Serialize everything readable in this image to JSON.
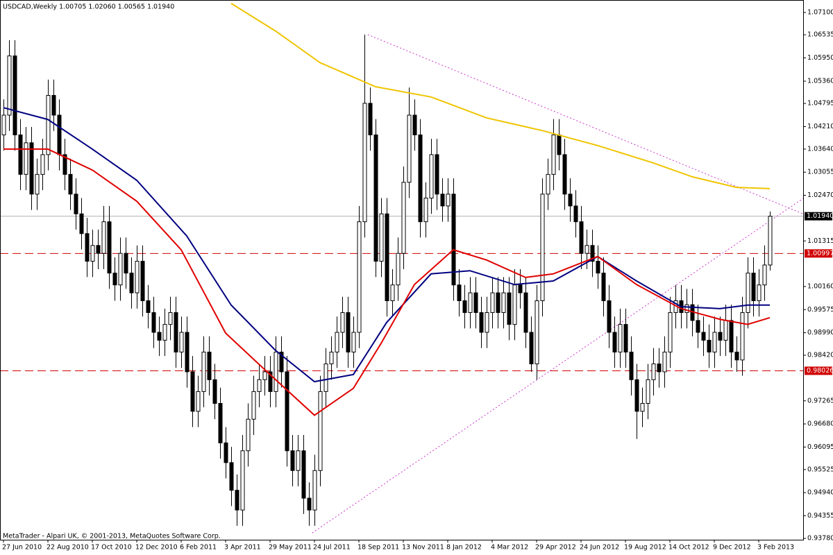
{
  "chart_data": {
    "type": "candlestick",
    "title": "USDCAD,Weekly  1.00705 1.02060 1.00565 1.01940",
    "annotation": "MetaTrader - Alpari UK, © 2001-2013, MetaQuotes Software Corp.",
    "up_color": "#ffffff",
    "down_color": "#000000",
    "candles": [
      [
        1.04,
        1.049,
        1.036,
        1.045
      ],
      [
        1.045,
        1.064,
        1.041,
        1.06
      ],
      [
        1.06,
        1.064,
        1.036,
        1.04
      ],
      [
        1.04,
        1.044,
        1.026,
        1.03
      ],
      [
        1.03,
        1.042,
        1.026,
        1.038
      ],
      [
        1.038,
        1.042,
        1.021,
        1.025
      ],
      [
        1.025,
        1.034,
        1.021,
        1.03
      ],
      [
        1.03,
        1.039,
        1.026,
        1.035
      ],
      [
        1.035,
        1.054,
        1.031,
        1.05
      ],
      [
        1.05,
        1.054,
        1.041,
        1.045
      ],
      [
        1.045,
        1.049,
        1.031,
        1.035
      ],
      [
        1.035,
        1.039,
        1.026,
        1.03
      ],
      [
        1.03,
        1.034,
        1.021,
        1.025
      ],
      [
        1.025,
        1.029,
        1.016,
        1.02
      ],
      [
        1.02,
        1.024,
        1.011,
        1.015
      ],
      [
        1.015,
        1.019,
        1.004,
        1.008
      ],
      [
        1.008,
        1.016,
        1.004,
        1.012
      ],
      [
        1.012,
        1.016,
        1.006,
        1.01
      ],
      [
        1.01,
        1.022,
        1.006,
        1.018
      ],
      [
        1.018,
        1.022,
        1.001,
        1.005
      ],
      [
        1.005,
        1.009,
        0.998,
        1.002
      ],
      [
        1.002,
        1.014,
        0.998,
        1.01
      ],
      [
        1.01,
        1.014,
        1.001,
        1.005
      ],
      [
        1.005,
        1.009,
        0.996,
        1.0
      ],
      [
        1.0,
        1.012,
        0.996,
        1.008
      ],
      [
        1.008,
        1.012,
        0.994,
        0.998
      ],
      [
        0.998,
        1.002,
        0.991,
        0.995
      ],
      [
        0.995,
        0.999,
        0.986,
        0.99
      ],
      [
        0.99,
        0.994,
        0.984,
        0.988
      ],
      [
        0.988,
        0.996,
        0.984,
        0.992
      ],
      [
        0.992,
        0.999,
        0.988,
        0.995
      ],
      [
        0.995,
        0.999,
        0.981,
        0.985
      ],
      [
        0.985,
        0.994,
        0.981,
        0.99
      ],
      [
        0.99,
        0.994,
        0.976,
        0.98
      ],
      [
        0.98,
        0.984,
        0.966,
        0.97
      ],
      [
        0.97,
        0.979,
        0.966,
        0.975
      ],
      [
        0.975,
        0.989,
        0.971,
        0.985
      ],
      [
        0.985,
        0.989,
        0.974,
        0.978
      ],
      [
        0.978,
        0.982,
        0.968,
        0.972
      ],
      [
        0.972,
        0.976,
        0.958,
        0.962
      ],
      [
        0.962,
        0.966,
        0.953,
        0.957
      ],
      [
        0.957,
        0.961,
        0.946,
        0.95
      ],
      [
        0.95,
        0.954,
        0.941,
        0.945
      ],
      [
        0.945,
        0.964,
        0.941,
        0.96
      ],
      [
        0.96,
        0.972,
        0.956,
        0.968
      ],
      [
        0.968,
        0.979,
        0.964,
        0.975
      ],
      [
        0.975,
        0.982,
        0.971,
        0.978
      ],
      [
        0.978,
        0.984,
        0.974,
        0.98
      ],
      [
        0.98,
        0.984,
        0.971,
        0.975
      ],
      [
        0.975,
        0.989,
        0.971,
        0.985
      ],
      [
        0.985,
        0.989,
        0.976,
        0.98
      ],
      [
        0.98,
        0.984,
        0.956,
        0.96
      ],
      [
        0.96,
        0.964,
        0.951,
        0.955
      ],
      [
        0.955,
        0.964,
        0.951,
        0.96
      ],
      [
        0.96,
        0.964,
        0.944,
        0.948
      ],
      [
        0.948,
        0.952,
        0.941,
        0.945
      ],
      [
        0.945,
        0.959,
        0.941,
        0.955
      ],
      [
        0.955,
        0.979,
        0.951,
        0.975
      ],
      [
        0.975,
        0.986,
        0.971,
        0.982
      ],
      [
        0.982,
        0.989,
        0.978,
        0.985
      ],
      [
        0.985,
        0.994,
        0.981,
        0.99
      ],
      [
        0.99,
        0.999,
        0.986,
        0.995
      ],
      [
        0.995,
        0.999,
        0.981,
        0.985
      ],
      [
        0.985,
        0.994,
        0.981,
        0.99
      ],
      [
        0.99,
        1.022,
        0.986,
        1.018
      ],
      [
        1.018,
        1.0654,
        1.014,
        1.048
      ],
      [
        1.048,
        1.052,
        1.036,
        1.04
      ],
      [
        1.04,
        1.044,
        1.004,
        1.008
      ],
      [
        1.008,
        1.024,
        1.004,
        1.02
      ],
      [
        1.02,
        1.024,
        0.994,
        0.998
      ],
      [
        0.998,
        1.006,
        0.994,
        1.002
      ],
      [
        1.002,
        1.014,
        0.998,
        1.01
      ],
      [
        1.01,
        1.032,
        1.006,
        1.028
      ],
      [
        1.028,
        1.052,
        1.024,
        1.045
      ],
      [
        1.045,
        1.049,
        1.036,
        1.04
      ],
      [
        1.04,
        1.044,
        1.014,
        1.018
      ],
      [
        1.018,
        1.028,
        1.014,
        1.024
      ],
      [
        1.024,
        1.039,
        1.02,
        1.035
      ],
      [
        1.035,
        1.039,
        1.021,
        1.025
      ],
      [
        1.025,
        1.029,
        1.018,
        1.022
      ],
      [
        1.022,
        1.029,
        1.018,
        1.025
      ],
      [
        1.025,
        1.029,
        0.998,
        1.002
      ],
      [
        1.002,
        1.006,
        0.994,
        0.998
      ],
      [
        0.998,
        1.002,
        0.991,
        0.995
      ],
      [
        0.995,
        1.004,
        0.991,
        1.0
      ],
      [
        1.0,
        1.004,
        0.991,
        0.995
      ],
      [
        0.995,
        0.999,
        0.986,
        0.99
      ],
      [
        0.99,
        0.999,
        0.986,
        0.995
      ],
      [
        0.995,
        1.004,
        0.991,
        1.0
      ],
      [
        1.0,
        1.004,
        0.991,
        0.995
      ],
      [
        0.995,
        1.004,
        0.991,
        1.0
      ],
      [
        1.0,
        1.004,
        0.988,
        0.992
      ],
      [
        0.992,
        1.006,
        0.988,
        1.002
      ],
      [
        1.002,
        1.006,
        0.996,
        1.0
      ],
      [
        1.0,
        1.004,
        0.986,
        0.99
      ],
      [
        0.99,
        0.994,
        0.98,
        0.982
      ],
      [
        0.982,
        1.002,
        0.978,
        0.998
      ],
      [
        0.998,
        1.029,
        0.994,
        1.025
      ],
      [
        1.025,
        1.034,
        1.021,
        1.03
      ],
      [
        1.03,
        1.044,
        1.026,
        1.04
      ],
      [
        1.04,
        1.044,
        1.031,
        1.035
      ],
      [
        1.035,
        1.039,
        1.021,
        1.025
      ],
      [
        1.025,
        1.029,
        1.018,
        1.022
      ],
      [
        1.022,
        1.026,
        1.014,
        1.018
      ],
      [
        1.018,
        1.022,
        1.006,
        1.01
      ],
      [
        1.01,
        1.016,
        1.006,
        1.012
      ],
      [
        1.012,
        1.016,
        1.004,
        1.008
      ],
      [
        1.008,
        1.012,
        1.001,
        1.005
      ],
      [
        1.005,
        1.009,
        0.994,
        0.998
      ],
      [
        0.998,
        1.002,
        0.986,
        0.99
      ],
      [
        0.99,
        0.994,
        0.981,
        0.985
      ],
      [
        0.985,
        0.996,
        0.981,
        0.992
      ],
      [
        0.992,
        0.996,
        0.981,
        0.985
      ],
      [
        0.985,
        0.989,
        0.974,
        0.978
      ],
      [
        0.978,
        0.982,
        0.963,
        0.97
      ],
      [
        0.97,
        0.976,
        0.966,
        0.972
      ],
      [
        0.972,
        0.982,
        0.968,
        0.978
      ],
      [
        0.978,
        0.986,
        0.974,
        0.982
      ],
      [
        0.982,
        0.986,
        0.976,
        0.98
      ],
      [
        0.98,
        0.989,
        0.976,
        0.985
      ],
      [
        0.985,
        0.999,
        0.981,
        0.995
      ],
      [
        0.995,
        1.002,
        0.991,
        0.998
      ],
      [
        0.998,
        1.002,
        0.991,
        0.995
      ],
      [
        0.995,
        1.001,
        0.991,
        0.997
      ],
      [
        0.997,
        1.001,
        0.989,
        0.993
      ],
      [
        0.993,
        0.997,
        0.986,
        0.99
      ],
      [
        0.99,
        0.994,
        0.984,
        0.988
      ],
      [
        0.988,
        0.992,
        0.981,
        0.985
      ],
      [
        0.985,
        0.994,
        0.981,
        0.99
      ],
      [
        0.99,
        0.994,
        0.984,
        0.988
      ],
      [
        0.988,
        0.997,
        0.984,
        0.993
      ],
      [
        0.993,
        0.997,
        0.981,
        0.985
      ],
      [
        0.985,
        0.989,
        0.98,
        0.983
      ],
      [
        0.983,
        0.999,
        0.979,
        0.995
      ],
      [
        0.995,
        1.009,
        0.991,
        1.005
      ],
      [
        1.005,
        1.009,
        0.994,
        0.998
      ],
      [
        0.998,
        1.006,
        0.994,
        1.002
      ],
      [
        1.002,
        1.012,
        0.998,
        1.00705
      ],
      [
        1.00705,
        1.0206,
        1.00565,
        1.0194
      ]
    ],
    "series": [
      {
        "color": "#000080",
        "x": [
          0,
          8,
          16,
          24,
          33,
          41,
          49,
          56,
          63,
          69,
          77,
          84,
          92,
          99,
          107,
          114,
          122,
          129,
          134,
          138
        ],
        "values": [
          1.0469,
          1.0439,
          1.0364,
          1.0285,
          1.0144,
          0.9969,
          0.9854,
          0.9775,
          0.9793,
          0.9925,
          1.0048,
          1.0056,
          1.0021,
          1.003,
          1.0092,
          1.003,
          0.9965,
          0.996,
          0.9969,
          0.9969
        ]
      },
      {
        "color": "#e00000",
        "x": [
          0,
          8,
          16,
          24,
          32,
          40,
          48,
          56,
          63,
          68,
          74,
          81,
          87,
          94,
          99,
          107,
          114,
          122,
          129,
          134,
          138
        ],
        "values": [
          1.0364,
          1.0364,
          1.0311,
          1.0232,
          1.0109,
          0.9898,
          0.9793,
          0.969,
          0.9758,
          0.9872,
          1.0021,
          1.0109,
          1.0083,
          1.0039,
          1.0048,
          1.0092,
          1.0021,
          0.996,
          0.9933,
          0.992,
          0.9937
        ]
      },
      {
        "color": "#f0c400",
        "x": [
          41,
          49,
          57,
          67,
          77,
          87,
          97,
          107,
          117,
          124,
          132,
          138
        ],
        "values": [
          1.0733,
          1.0663,
          1.0583,
          1.0522,
          1.0496,
          1.0443,
          1.0411,
          1.0373,
          1.0329,
          1.0294,
          1.0267,
          1.0264
        ]
      }
    ],
    "trendlines": [
      {
        "color": "#cc33cc",
        "x": [
          65.6,
          146.9
        ],
        "values": [
          1.0654,
          1.0183
        ]
      },
      {
        "color": "#cc33cc",
        "x": [
          55.6,
          146.9
        ],
        "values": [
          0.9392,
          1.0267
        ]
      }
    ],
    "hlines": [
      {
        "value": 1.0194,
        "label": "1.01940",
        "color": "#000000",
        "line_color": "#b0b0b0",
        "dashed": false
      },
      {
        "value": 1.00997,
        "label": "1.00997",
        "color": "#d00000",
        "line_color": "#d00000",
        "dashed": true
      },
      {
        "value": 0.98026,
        "label": "0.98026",
        "color": "#d00000",
        "line_color": "#d00000",
        "dashed": true
      }
    ],
    "xlim": [
      -0.625,
      144
    ],
    "xticks": [
      {
        "value": 0,
        "label": "27 Jun 2010"
      },
      {
        "value": 8,
        "label": "22 Aug 2010"
      },
      {
        "value": 16,
        "label": "17 Oct 2010"
      },
      {
        "value": 24,
        "label": "12 Dec 2010"
      },
      {
        "value": 32,
        "label": "6 Feb 2011"
      },
      {
        "value": 40,
        "label": "3 Apr 2011"
      },
      {
        "value": 48,
        "label": "29 May 2011"
      },
      {
        "value": 56,
        "label": "24 Jul 2011"
      },
      {
        "value": 64,
        "label": "18 Sep 2011"
      },
      {
        "value": 72,
        "label": "13 Nov 2011"
      },
      {
        "value": 80,
        "label": "8 Jan 2012"
      },
      {
        "value": 88,
        "label": "4 Mar 2012"
      },
      {
        "value": 96,
        "label": "29 Apr 2012"
      },
      {
        "value": 104,
        "label": "24 Jun 2012"
      },
      {
        "value": 112,
        "label": "19 Aug 2012"
      },
      {
        "value": 120,
        "label": "14 Oct 2012"
      },
      {
        "value": 128,
        "label": "9 Dec 2012"
      },
      {
        "value": 136,
        "label": "3 Feb 2013"
      }
    ],
    "ylim": [
      0.93747,
      1.07416
    ],
    "yticks": [
      {
        "value": 1.071,
        "label": "1.07100"
      },
      {
        "value": 1.06535,
        "label": "1.06535"
      },
      {
        "value": 1.0595,
        "label": "1.05950"
      },
      {
        "value": 1.0536,
        "label": "1.05360"
      },
      {
        "value": 1.04795,
        "label": "1.04795"
      },
      {
        "value": 1.0421,
        "label": "1.04210"
      },
      {
        "value": 1.0364,
        "label": "1.03640"
      },
      {
        "value": 1.03055,
        "label": "1.03055"
      },
      {
        "value": 1.0247,
        "label": "1.02470"
      },
      {
        "value": 1.01315,
        "label": "1.01315"
      },
      {
        "value": 1.0016,
        "label": "1.00160"
      },
      {
        "value": 0.99575,
        "label": "0.99575"
      },
      {
        "value": 0.9899,
        "label": "0.98990"
      },
      {
        "value": 0.9842,
        "label": "0.98420"
      },
      {
        "value": 0.97265,
        "label": "0.97265"
      },
      {
        "value": 0.9668,
        "label": "0.96680"
      },
      {
        "value": 0.96095,
        "label": "0.96095"
      },
      {
        "value": 0.95525,
        "label": "0.95525"
      },
      {
        "value": 0.9494,
        "label": "0.94940"
      },
      {
        "value": 0.94355,
        "label": "0.94355"
      },
      {
        "value": 0.9378,
        "label": "0.93780"
      }
    ]
  }
}
